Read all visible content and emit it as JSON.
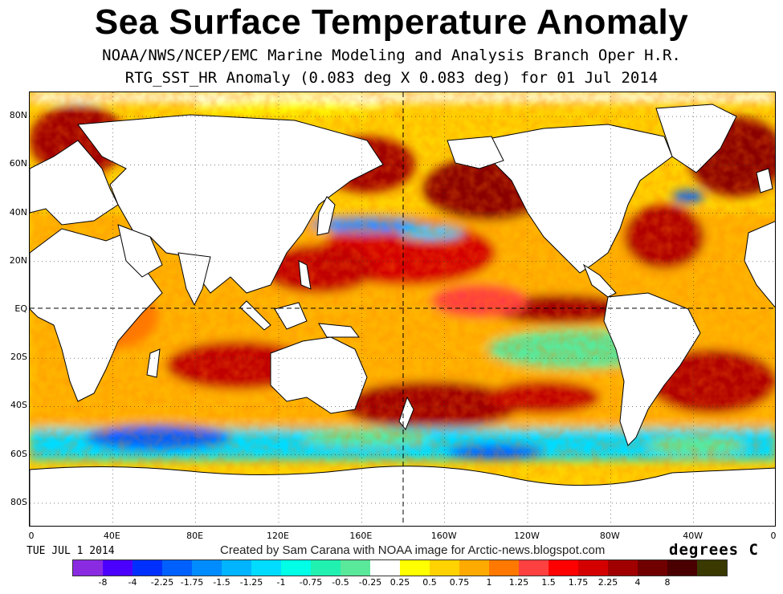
{
  "title": "Sea Surface Temperature Anomaly",
  "subtitle_1": "NOAA/NWS/NCEP/EMC Marine Modeling and Analysis Branch Oper H.R.",
  "subtitle_2": "RTG_SST_HR Anomaly (0.083 deg X 0.083 deg) for 01 Jul 2014",
  "lat_labels": [
    "80N",
    "60N",
    "40N",
    "20N",
    "EQ",
    "20S",
    "40S",
    "60S",
    "80S"
  ],
  "lon_labels": [
    "0",
    "40E",
    "80E",
    "120E",
    "160E",
    "160W",
    "120W",
    "80W",
    "40W",
    "0"
  ],
  "footer_date": "TUE JUL 1 2014",
  "credit": "Created by Sam Carana with NOAA image for Arctic-news.blogspot.com",
  "units": "degrees C",
  "colorbar": {
    "labels": [
      "-8",
      "-4",
      "-2.25",
      "-1.75",
      "-1.5",
      "-1.25",
      "-1",
      "-0.75",
      "-0.5",
      "-0.25",
      "0.25",
      "0.5",
      "0.75",
      "1",
      "1.25",
      "1.5",
      "1.75",
      "2.25",
      "4",
      "8"
    ],
    "colors": [
      "#8a2be2",
      "#4b00ff",
      "#0030ff",
      "#0060ff",
      "#008cff",
      "#00b4ff",
      "#00dcff",
      "#00ffe6",
      "#20f0b0",
      "#5ae89a",
      "#ffffff",
      "#ffff00",
      "#ffd200",
      "#ffaa00",
      "#ff7800",
      "#ff4040",
      "#ff0000",
      "#d40000",
      "#a00000",
      "#700000",
      "#4a0000",
      "#3a3a00"
    ]
  },
  "colors": {
    "land": "#ffffff",
    "coast": "#000000",
    "ocean_base": "#ffd200",
    "hot": "#a00000",
    "cold": "#0060ff",
    "ice": "#ffffff"
  }
}
